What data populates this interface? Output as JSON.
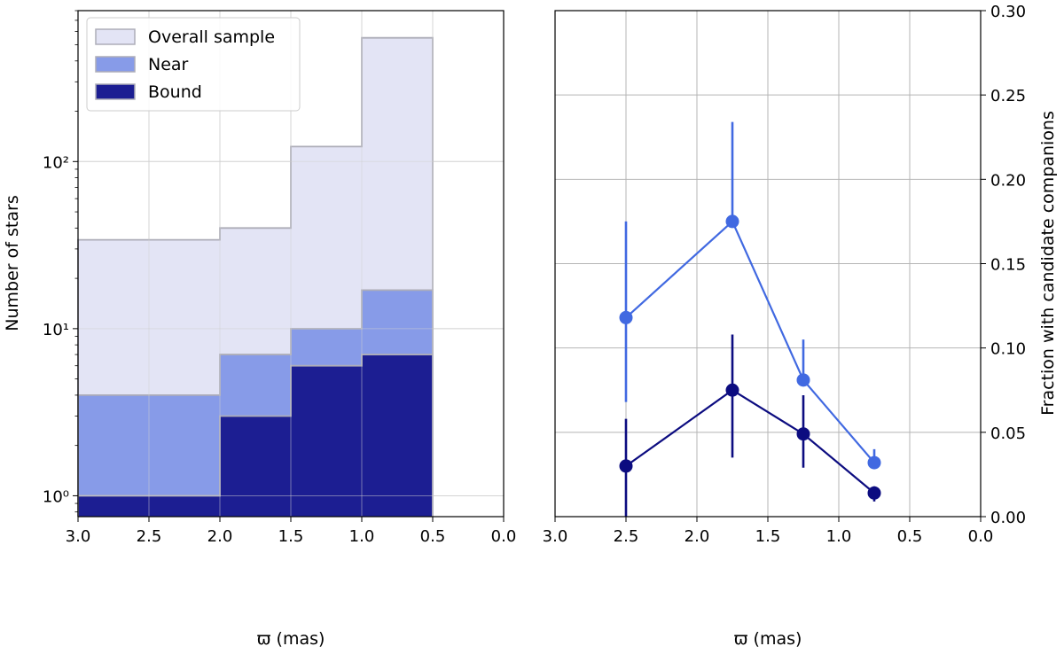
{
  "chart_data": [
    {
      "type": "bar",
      "subtype": "stepped-histogram",
      "xlabel": "ϖ (mas)",
      "ylabel": "Number of stars",
      "xlim": [
        3.0,
        0.0
      ],
      "xticks": [
        3.0,
        2.5,
        2.0,
        1.5,
        1.0,
        0.5,
        0.0
      ],
      "xtick_labels": [
        "3.0",
        "2.5",
        "2.0",
        "1.5",
        "1.0",
        "0.5",
        "0.0"
      ],
      "yscale": "log",
      "ylim": [
        0.75,
        800
      ],
      "yticks_major": [
        1,
        10,
        100
      ],
      "ytick_labels": [
        "10⁰",
        "10¹",
        "10²"
      ],
      "grid": true,
      "legend_position": "top-left",
      "bin_edges": [
        3.0,
        2.0,
        1.5,
        1.0,
        0.5
      ],
      "series": [
        {
          "name": "Overall sample",
          "color": "#e3e4f5",
          "values": [
            34,
            40,
            123,
            550
          ]
        },
        {
          "name": "Near",
          "color": "#879be8",
          "values": [
            4,
            7,
            10,
            17
          ]
        },
        {
          "name": "Bound",
          "color": "#1c1e92",
          "values": [
            1,
            3,
            6,
            7
          ]
        }
      ],
      "edge_color": "#adadb8"
    },
    {
      "type": "scatter",
      "subtype": "line-with-errorbars",
      "xlabel": "ϖ (mas)",
      "ylabel": "Fraction with candidate companions",
      "xlim": [
        3.0,
        0.0
      ],
      "xticks": [
        3.0,
        2.5,
        2.0,
        1.5,
        1.0,
        0.5,
        0.0
      ],
      "xtick_labels": [
        "3.0",
        "2.5",
        "2.0",
        "1.5",
        "1.0",
        "0.5",
        "0.0"
      ],
      "ylim": [
        0.0,
        0.3
      ],
      "yticks": [
        0.0,
        0.05,
        0.1,
        0.15,
        0.2,
        0.25,
        0.3
      ],
      "ytick_labels": [
        "0.00",
        "0.05",
        "0.10",
        "0.15",
        "0.20",
        "0.25",
        "0.30"
      ],
      "yaxis_side": "right",
      "grid": true,
      "x": [
        2.5,
        1.75,
        1.25,
        0.75
      ],
      "series": [
        {
          "color": "#4169e1",
          "values": [
            0.118,
            0.175,
            0.081,
            0.032
          ],
          "err_low": [
            0.068,
            0.175,
            0.081,
            0.032
          ],
          "err_high": [
            0.175,
            0.234,
            0.105,
            0.04
          ]
        },
        {
          "color": "#0c0c80",
          "values": [
            0.03,
            0.075,
            0.049,
            0.014
          ],
          "err_low": [
            0.0,
            0.035,
            0.029,
            0.009
          ],
          "err_high": [
            0.058,
            0.108,
            0.072,
            0.018
          ]
        }
      ]
    }
  ]
}
